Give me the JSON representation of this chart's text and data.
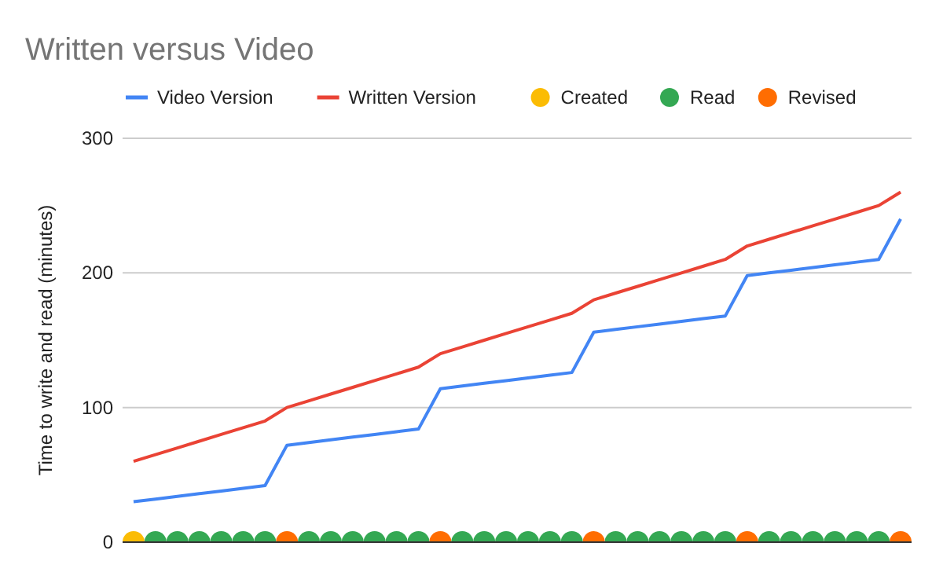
{
  "chart_data": {
    "type": "line",
    "title": "Written versus Video",
    "ylabel": "Time to write and read (minutes)",
    "categories": [
      null,
      null,
      null,
      null,
      null,
      null,
      null,
      null,
      null,
      null,
      null,
      null,
      null,
      null,
      null,
      null,
      null,
      null,
      null,
      null,
      null,
      null,
      null,
      null,
      null,
      null,
      null,
      null,
      null,
      null,
      null,
      null,
      null,
      null,
      null,
      null
    ],
    "series": [
      {
        "name": "Video Version",
        "color": "#4285f4",
        "values": [
          30,
          32,
          34,
          36,
          38,
          40,
          42,
          72,
          74,
          76,
          78,
          80,
          82,
          84,
          114,
          116,
          118,
          120,
          122,
          124,
          126,
          156,
          158,
          160,
          162,
          164,
          166,
          168,
          198,
          200,
          202,
          204,
          206,
          208,
          210,
          240
        ]
      },
      {
        "name": "Written Version",
        "color": "#ea4335",
        "values": [
          60,
          65,
          70,
          75,
          80,
          85,
          90,
          100,
          105,
          110,
          115,
          120,
          125,
          130,
          140,
          145,
          150,
          155,
          160,
          165,
          170,
          180,
          185,
          190,
          195,
          200,
          205,
          210,
          220,
          225,
          230,
          235,
          240,
          245,
          250,
          260
        ]
      },
      {
        "name": "Created",
        "type": "scatter",
        "marker": "circle",
        "color": "#fbbc04",
        "values": [
          0,
          null,
          null,
          null,
          null,
          null,
          null,
          null,
          null,
          null,
          null,
          null,
          null,
          null,
          null,
          null,
          null,
          null,
          null,
          null,
          null,
          null,
          null,
          null,
          null,
          null,
          null,
          null,
          null,
          null,
          null,
          null,
          null,
          null,
          null,
          null
        ]
      },
      {
        "name": "Read",
        "type": "scatter",
        "marker": "circle",
        "color": "#34a853",
        "values": [
          null,
          0,
          0,
          0,
          0,
          0,
          0,
          null,
          0,
          0,
          0,
          0,
          0,
          0,
          null,
          0,
          0,
          0,
          0,
          0,
          0,
          null,
          0,
          0,
          0,
          0,
          0,
          0,
          null,
          0,
          0,
          0,
          0,
          0,
          0,
          null
        ]
      },
      {
        "name": "Revised",
        "type": "scatter",
        "marker": "circle",
        "color": "#ff6d01",
        "values": [
          null,
          null,
          null,
          null,
          null,
          null,
          null,
          0,
          null,
          null,
          null,
          null,
          null,
          null,
          0,
          null,
          null,
          null,
          null,
          null,
          null,
          0,
          null,
          null,
          null,
          null,
          null,
          null,
          0,
          null,
          null,
          null,
          null,
          null,
          null,
          0
        ]
      }
    ],
    "ylim": [
      0,
      300
    ],
    "yticks": [
      0,
      100,
      200,
      300
    ],
    "grid": "y",
    "legend": "top",
    "tick_labels": "y"
  }
}
